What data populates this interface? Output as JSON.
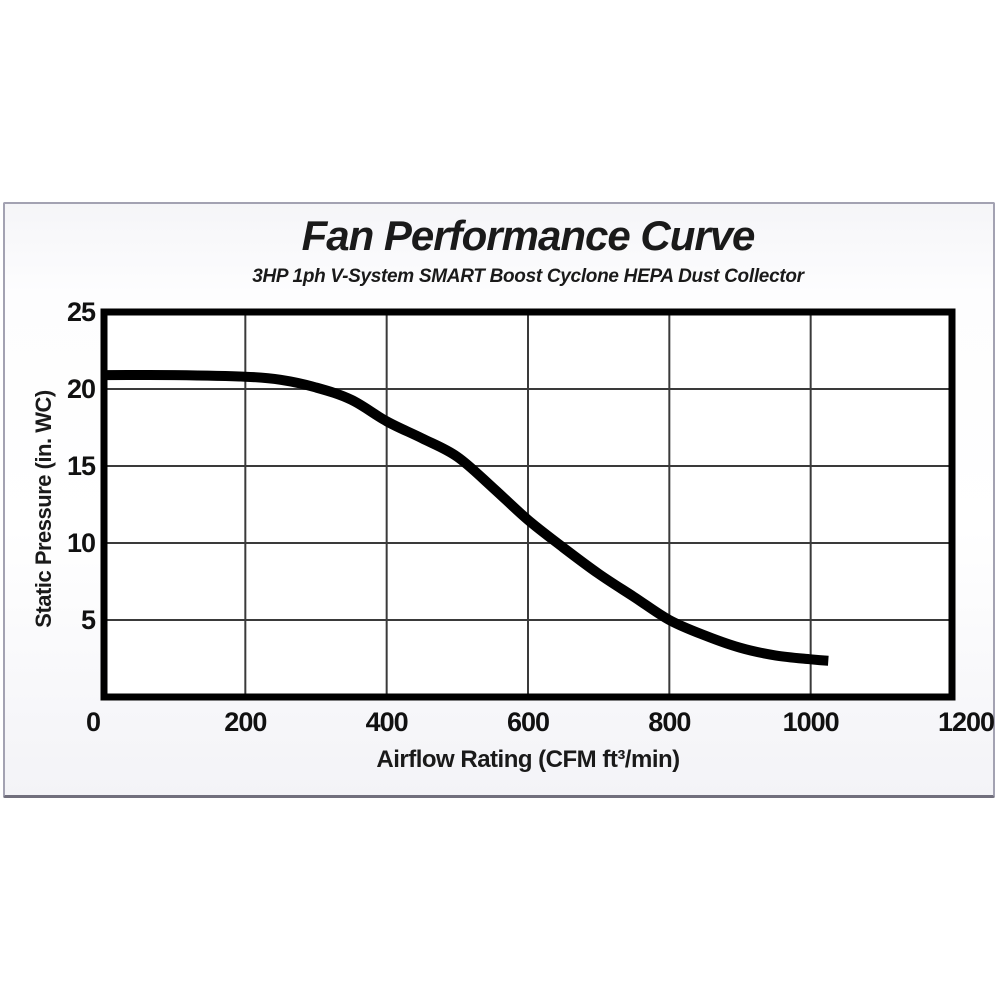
{
  "chart_data": {
    "type": "line",
    "title": "Fan Performance Curve",
    "subtitle": "3HP 1ph V-System SMART Boost Cyclone HEPA Dust Collector",
    "xlabel": "Airflow Rating (CFM ft³/min)",
    "ylabel": "Static Pressure (in. WC)",
    "xlim": [
      0,
      1200
    ],
    "ylim": [
      0,
      25
    ],
    "x_ticks": [
      0,
      200,
      400,
      600,
      800,
      1000,
      1200
    ],
    "y_ticks": [
      5,
      10,
      15,
      20,
      25
    ],
    "x_gridlines": [
      200,
      400,
      600,
      800,
      1000
    ],
    "y_gridlines": [
      5,
      10,
      15,
      20
    ],
    "grid": true,
    "grid_color": "#3a3a3a",
    "frame_color": "#000000",
    "plot_background": "#ffffff",
    "series": [
      {
        "name": "fan-performance-curve",
        "color": "#000000",
        "stroke_width": 10,
        "points": [
          [
            0,
            20.9
          ],
          [
            100,
            20.9
          ],
          [
            200,
            20.8
          ],
          [
            250,
            20.6
          ],
          [
            300,
            20.1
          ],
          [
            350,
            19.3
          ],
          [
            400,
            17.9
          ],
          [
            450,
            16.8
          ],
          [
            500,
            15.6
          ],
          [
            550,
            13.6
          ],
          [
            600,
            11.5
          ],
          [
            650,
            9.7
          ],
          [
            700,
            8.0
          ],
          [
            750,
            6.5
          ],
          [
            800,
            5.0
          ],
          [
            850,
            4.0
          ],
          [
            900,
            3.2
          ],
          [
            950,
            2.7
          ],
          [
            1000,
            2.45
          ],
          [
            1025,
            2.35
          ]
        ]
      }
    ]
  }
}
